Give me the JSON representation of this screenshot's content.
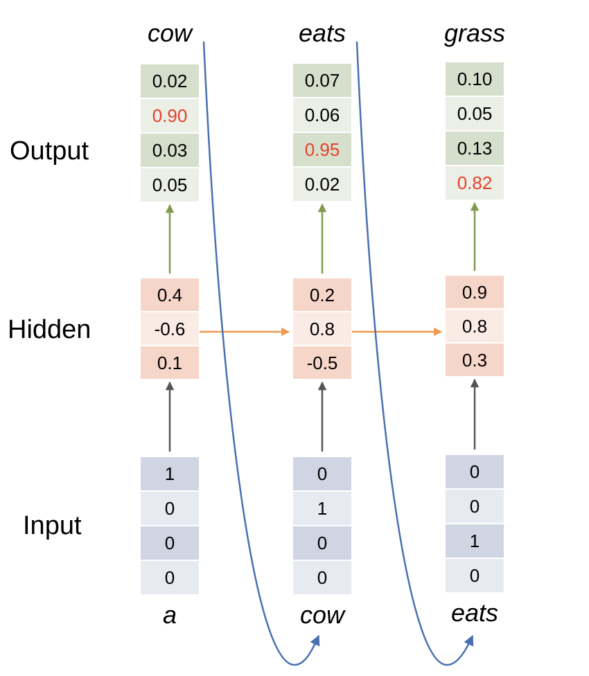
{
  "colors": {
    "output_dark": "#d6dfcc",
    "output_light": "#ebefe6",
    "hidden_dark": "#f6d6c9",
    "hidden_light": "#faebe5",
    "input_dark": "#cfd5e3",
    "input_light": "#e7eaf1",
    "highlight_text": "#e6412d",
    "arrow_output": "#7f9a4f",
    "arrow_hidden": "#ef9a4e",
    "arrow_input": "#555555",
    "curve": "#4a6fb0"
  },
  "row_labels": {
    "output": "Output",
    "hidden": "Hidden",
    "input": "Input"
  },
  "steps": [
    {
      "output_word": "cow",
      "input_word": "a",
      "output": [
        "0.02",
        "0.90",
        "0.03",
        "0.05"
      ],
      "output_highlight_index": 1,
      "hidden": [
        "0.4",
        "-0.6",
        "0.1"
      ],
      "input": [
        "1",
        "0",
        "0",
        "0"
      ]
    },
    {
      "output_word": "eats",
      "input_word": "cow",
      "output": [
        "0.07",
        "0.06",
        "0.95",
        "0.02"
      ],
      "output_highlight_index": 2,
      "hidden": [
        "0.2",
        "0.8",
        "-0.5"
      ],
      "input": [
        "0",
        "1",
        "0",
        "0"
      ]
    },
    {
      "output_word": "grass",
      "input_word": "eats",
      "output": [
        "0.10",
        "0.05",
        "0.13",
        "0.82"
      ],
      "output_highlight_index": 3,
      "hidden": [
        "0.9",
        "0.8",
        "0.3"
      ],
      "input": [
        "0",
        "0",
        "1",
        "0"
      ]
    }
  ]
}
